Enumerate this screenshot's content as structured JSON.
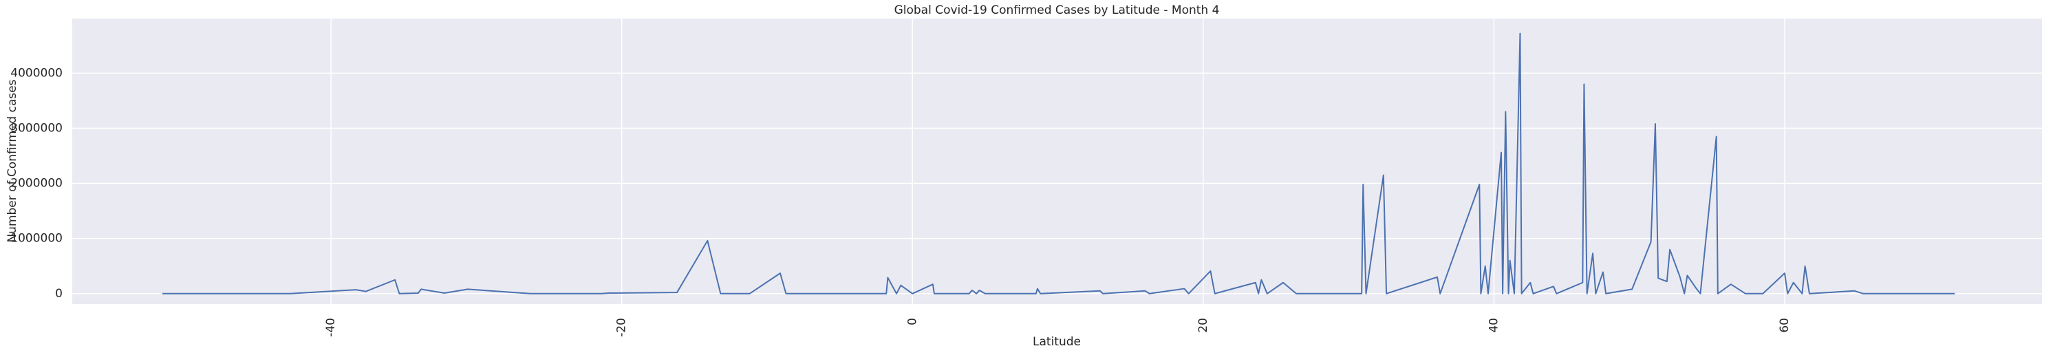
{
  "chart_data": {
    "type": "line",
    "title": "Global Covid-19 Confirmed Cases by Latitude - Month 4",
    "x_label": "Latitude",
    "y_label": "Number of Confirmed cases",
    "x": [
      -51.6,
      -42.8,
      -38.3,
      -37.6,
      -35.6,
      -35.3,
      -34.0,
      -33.8,
      -32.2,
      -30.6,
      -26.3,
      -21.4,
      -20.9,
      -16.2,
      -14.1,
      -13.2,
      -11.2,
      -9.1,
      -8.7,
      -5.1,
      -1.8,
      -1.7,
      -1.1,
      -0.8,
      0.0,
      1.4,
      1.5,
      3.9,
      4.1,
      4.4,
      4.6,
      5.0,
      8.5,
      8.6,
      8.8,
      12.9,
      13.1,
      16.0,
      16.3,
      18.7,
      19.0,
      20.5,
      20.8,
      23.6,
      23.8,
      24.0,
      24.4,
      25.5,
      26.4,
      30.9,
      31.0,
      31.2,
      32.4,
      32.6,
      36.1,
      36.3,
      39.0,
      39.1,
      39.4,
      39.6,
      40.5,
      40.6,
      40.8,
      41.0,
      41.1,
      41.4,
      41.8,
      41.9,
      42.5,
      42.7,
      44.1,
      44.3,
      46.1,
      46.2,
      46.4,
      46.8,
      47.0,
      47.5,
      47.7,
      49.5,
      50.8,
      51.1,
      51.3,
      51.9,
      52.1,
      52.8,
      53.1,
      53.3,
      53.9,
      54.2,
      55.3,
      55.4,
      56.3,
      57.3,
      58.5,
      60.0,
      60.2,
      60.6,
      61.2,
      61.4,
      61.7,
      64.8,
      65.4,
      71.7
    ],
    "series": [
      {
        "name": "Confirmed",
        "color": "#4c72b0",
        "values": [
          0,
          0,
          70000,
          40000,
          250000,
          0,
          10000,
          80000,
          10000,
          80000,
          0,
          0,
          10000,
          20000,
          960000,
          0,
          0,
          370000,
          0,
          0,
          0,
          290000,
          0,
          150000,
          0,
          170000,
          0,
          0,
          60000,
          0,
          60000,
          0,
          0,
          90000,
          0,
          50000,
          0,
          50000,
          0,
          90000,
          0,
          410000,
          0,
          200000,
          0,
          250000,
          0,
          200000,
          0,
          0,
          1980000,
          0,
          2150000,
          0,
          300000,
          0,
          1980000,
          0,
          500000,
          0,
          2560000,
          0,
          3300000,
          0,
          600000,
          0,
          4720000,
          0,
          200000,
          0,
          130000,
          0,
          200000,
          3800000,
          0,
          730000,
          0,
          390000,
          0,
          80000,
          940000,
          3080000,
          280000,
          220000,
          800000,
          300000,
          0,
          330000,
          100000,
          0,
          2850000,
          0,
          170000,
          0,
          0,
          370000,
          0,
          200000,
          0,
          500000,
          0,
          50000,
          0,
          0
        ]
      }
    ],
    "xlim": [
      -57.8,
      77.7
    ],
    "ylim": [
      -190000,
      4990000
    ],
    "xticks": [
      -40,
      -20,
      0,
      20,
      40,
      60
    ],
    "yticks": [
      0,
      1000000,
      2000000,
      3000000,
      4000000
    ],
    "grid": true
  }
}
